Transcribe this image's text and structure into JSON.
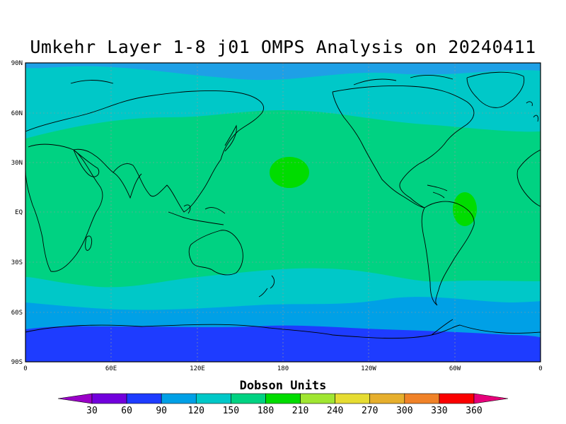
{
  "title": "Umkehr Layer 1-8 j01 OMPS Analysis on 20240411",
  "colorbar": {
    "title": "Dobson Units",
    "labels": [
      "30",
      "60",
      "90",
      "120",
      "150",
      "180",
      "210",
      "240",
      "270",
      "300",
      "330",
      "360"
    ],
    "colors": [
      "#9a00c8",
      "#7200dc",
      "#1e3cff",
      "#00a0e6",
      "#00c8c8",
      "#00d282",
      "#00dc00",
      "#a0e632",
      "#e6dc32",
      "#e6af2d",
      "#f08228",
      "#fa0000",
      "#e6007a"
    ]
  },
  "map": {
    "lat_labels": [
      "90N",
      "60N",
      "30N",
      "EQ",
      "30S",
      "60S",
      "90S"
    ],
    "lon_labels": [
      "0",
      "60E",
      "120E",
      "180",
      "120W",
      "60W",
      "0"
    ]
  }
}
